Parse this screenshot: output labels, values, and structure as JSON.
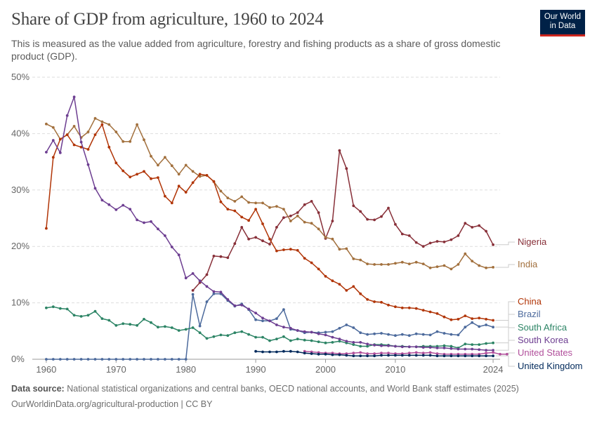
{
  "header": {
    "title": "Share of GDP from agriculture, 1960 to 2024",
    "subtitle": "This is measured as the value added from agriculture, forestry and fishing products as a share of gross domestic product (GDP)."
  },
  "logo": {
    "line1": "Our World",
    "line2": "in Data",
    "bg_color": "#002147",
    "accent_color": "#ce261e"
  },
  "footer": {
    "source_label": "Data source:",
    "source_text": "National statistical organizations and central banks, OECD national accounts, and World Bank staff estimates (2025)",
    "url_text": "OurWorldinData.org/agricultural-production | CC BY"
  },
  "chart_data": {
    "type": "line",
    "title": "Share of GDP from agriculture, 1960 to 2024",
    "xlim": [
      1958,
      2025
    ],
    "ylim": [
      0,
      50
    ],
    "x_ticks": [
      1960,
      1970,
      1980,
      1990,
      2000,
      2010,
      2024
    ],
    "y_ticks": [
      0,
      10,
      20,
      30,
      40,
      50
    ],
    "y_tick_labels": [
      "0%",
      "10%",
      "20%",
      "30%",
      "40%",
      "50%"
    ],
    "grid": "horizontal dashed",
    "legend": "right, inline labels at line ends",
    "series": [
      {
        "name": "Nigeria",
        "color": "#883039",
        "start": 1981,
        "values": [
          12.2,
          13.6,
          15.0,
          18.3,
          18.2,
          18.0,
          20.5,
          23.4,
          21.3,
          21.6,
          21.0,
          20.4,
          23.4,
          25.1,
          25.4,
          26.0,
          27.4,
          28.0,
          26.0,
          21.4,
          24.5,
          37.0,
          33.8,
          27.2,
          26.2,
          24.8,
          24.7,
          25.3,
          26.8,
          23.9,
          22.2,
          21.9,
          20.7,
          20.0,
          20.6,
          20.9,
          20.8,
          21.2,
          21.9,
          24.1,
          23.4,
          23.7,
          22.7,
          20.3
        ]
      },
      {
        "name": "India",
        "color": "#a2703d",
        "start": 1960,
        "values": [
          41.7,
          41.1,
          39.0,
          39.8,
          41.3,
          39.3,
          40.3,
          42.7,
          42.1,
          41.6,
          40.3,
          38.6,
          38.6,
          41.6,
          38.9,
          36.0,
          34.4,
          35.8,
          34.3,
          32.8,
          34.4,
          33.3,
          32.4,
          32.6,
          31.5,
          29.8,
          28.6,
          28.0,
          28.8,
          27.8,
          27.7,
          27.7,
          26.9,
          27.1,
          26.6,
          24.5,
          25.4,
          24.3,
          24.1,
          23.1,
          21.6,
          21.3,
          19.5,
          19.6,
          17.8,
          17.6,
          16.9,
          16.8,
          16.8,
          16.8,
          17.0,
          17.2,
          16.9,
          17.2,
          16.9,
          16.2,
          16.4,
          16.6,
          16.0,
          16.8,
          18.7,
          17.4,
          16.6,
          16.2,
          16.3
        ]
      },
      {
        "name": "China",
        "color": "#b13507",
        "start": 1960,
        "values": [
          23.2,
          35.8,
          39.0,
          39.8,
          38.0,
          37.6,
          37.2,
          39.8,
          41.6,
          37.6,
          34.8,
          33.4,
          32.3,
          32.8,
          33.3,
          32.0,
          32.2,
          28.9,
          27.7,
          30.7,
          29.6,
          31.3,
          32.8,
          32.6,
          31.5,
          27.9,
          26.6,
          26.3,
          25.2,
          24.6,
          26.6,
          24.0,
          21.3,
          19.2,
          19.4,
          19.5,
          19.3,
          17.9,
          17.1,
          16.0,
          14.7,
          13.9,
          13.3,
          12.2,
          12.9,
          11.6,
          10.6,
          10.2,
          10.1,
          9.6,
          9.3,
          9.1,
          9.1,
          9.0,
          8.7,
          8.4,
          8.1,
          7.5,
          7.0,
          7.1,
          7.7,
          7.2,
          7.3,
          7.1,
          6.9
        ]
      },
      {
        "name": "Brazil",
        "color": "#4c6a9c",
        "start": 1960,
        "values": [
          0,
          0,
          0,
          0,
          0,
          0,
          0,
          0,
          0,
          0,
          0,
          0,
          0,
          0,
          0,
          0,
          0,
          0,
          0,
          0,
          0,
          11.5,
          5.9,
          10.2,
          11.6,
          11.6,
          10.4,
          9.4,
          9.8,
          8.8,
          7.0,
          6.8,
          6.8,
          7.2,
          8.8,
          5.3,
          5.1,
          4.7,
          4.8,
          4.7,
          4.8,
          4.9,
          5.5,
          6.1,
          5.6,
          4.7,
          4.4,
          4.5,
          4.6,
          4.4,
          4.2,
          4.4,
          4.2,
          4.5,
          4.4,
          4.3,
          4.9,
          4.6,
          4.4,
          4.3,
          5.7,
          6.5,
          5.8,
          6.1,
          5.7
        ]
      },
      {
        "name": "South Africa",
        "color": "#2c8465",
        "start": 1960,
        "values": [
          9.1,
          9.3,
          9.0,
          8.9,
          7.8,
          7.6,
          7.8,
          8.5,
          7.2,
          6.9,
          6.0,
          6.3,
          6.2,
          6.0,
          7.1,
          6.5,
          5.7,
          5.8,
          5.6,
          5.1,
          5.3,
          5.6,
          4.7,
          3.7,
          4.0,
          4.3,
          4.2,
          4.7,
          4.9,
          4.4,
          3.9,
          3.9,
          3.3,
          3.6,
          4.0,
          3.3,
          3.6,
          3.4,
          3.3,
          3.1,
          2.9,
          3.0,
          3.2,
          2.9,
          2.6,
          2.3,
          2.3,
          2.6,
          2.6,
          2.5,
          2.3,
          2.3,
          2.2,
          2.2,
          2.3,
          2.3,
          2.3,
          2.4,
          2.3,
          2.0,
          2.7,
          2.6,
          2.6,
          2.8,
          2.9
        ]
      },
      {
        "name": "South Korea",
        "color": "#6d3e91",
        "start": 1960,
        "values": [
          36.7,
          38.8,
          36.6,
          43.2,
          46.5,
          38.5,
          34.5,
          30.3,
          28.2,
          27.4,
          26.5,
          27.3,
          26.6,
          24.7,
          24.2,
          24.4,
          23.1,
          21.9,
          19.9,
          18.5,
          14.4,
          15.2,
          13.9,
          12.9,
          12.0,
          11.9,
          10.6,
          9.5,
          9.6,
          8.9,
          8.2,
          7.3,
          6.8,
          6.1,
          5.7,
          5.5,
          5.1,
          4.9,
          4.8,
          4.5,
          4.3,
          3.9,
          3.6,
          3.2,
          3.0,
          3.0,
          2.7,
          2.5,
          2.4,
          2.4,
          2.3,
          2.2,
          2.2,
          2.2,
          2.1,
          2.1,
          2.0,
          2.0,
          1.9,
          1.8,
          1.8,
          1.8,
          1.7,
          1.6,
          1.6
        ]
      },
      {
        "name": "United States",
        "color": "#b14f9b",
        "start": 1997,
        "values": [
          1.4,
          1.3,
          1.2,
          1.1,
          1.1,
          1.0,
          1.0,
          1.1,
          1.2,
          1.0,
          1.0,
          1.1,
          1.1,
          1.0,
          1.0,
          1.1,
          1.2,
          1.1,
          1.2,
          1.0,
          0.9,
          0.9,
          0.9,
          0.9,
          0.9,
          0.9,
          1.1,
          1.2,
          0.9,
          0.9
        ]
      },
      {
        "name": "United Kingdom",
        "color": "#00295b",
        "start": 1990,
        "values": [
          1.4,
          1.3,
          1.3,
          1.3,
          1.4,
          1.4,
          1.3,
          1.1,
          1.0,
          0.9,
          0.9,
          0.8,
          0.8,
          0.7,
          0.6,
          0.6,
          0.6,
          0.6,
          0.7,
          0.7,
          0.7,
          0.7,
          0.7,
          0.7,
          0.7,
          0.7,
          0.6,
          0.6,
          0.6,
          0.6,
          0.6,
          0.6,
          0.6,
          0.6,
          0.6
        ]
      }
    ]
  }
}
